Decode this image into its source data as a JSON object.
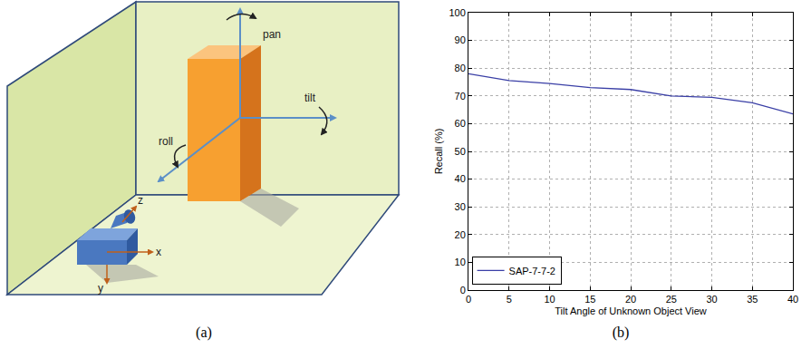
{
  "captions": [
    "(a)",
    "(b)"
  ],
  "diagram": {
    "rotation_labels": {
      "pan": "pan",
      "tilt": "tilt",
      "roll": "roll"
    },
    "camera_axes": {
      "x": "x",
      "y": "y",
      "z": "z"
    }
  },
  "chart_data": {
    "type": "line",
    "x_label": "Tilt Angle of Unknown Object View",
    "y_label": "Recall (%)",
    "x": [
      0,
      5,
      10,
      15,
      20,
      25,
      30,
      35,
      40
    ],
    "series": [
      {
        "name": "SAP-7-7-2",
        "color": "#3a3fa6",
        "line_style": "solid",
        "values": [
          78,
          75.5,
          74.5,
          73,
          72.3,
          70,
          69.5,
          67.5,
          63.5
        ]
      }
    ],
    "xlim": [
      0,
      40
    ],
    "xticks": [
      0,
      5,
      10,
      15,
      20,
      25,
      30,
      35,
      40
    ],
    "ylim": [
      0,
      100
    ],
    "yticks": [
      0,
      10,
      20,
      30,
      40,
      50,
      60,
      70,
      80,
      90,
      100
    ],
    "grid": true,
    "legend": "lower left"
  }
}
